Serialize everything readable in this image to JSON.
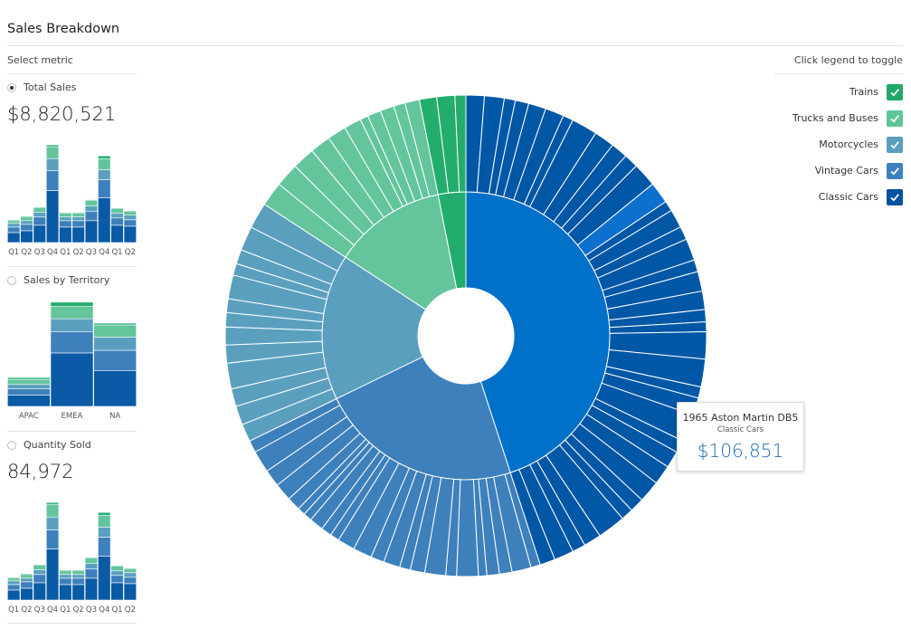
{
  "header": {
    "title": "Sales Breakdown"
  },
  "sidebar": {
    "select_label": "Select metric",
    "metrics": [
      {
        "label": "Total Sales",
        "selected": true,
        "value": "$8,820,521"
      },
      {
        "label": "Sales by Territory",
        "selected": false
      },
      {
        "label": "Quantity Sold",
        "selected": false,
        "value": "84,972"
      }
    ],
    "quarter_ticks": [
      "Q1",
      "Q2",
      "Q3",
      "Q4",
      "Q1",
      "Q2",
      "Q3",
      "Q4",
      "Q1",
      "Q2"
    ],
    "territory_ticks": [
      "APAC",
      "EMEA",
      "NA"
    ]
  },
  "legend": {
    "hint": "Click legend to toggle",
    "items": [
      {
        "label": "Trains",
        "color": "#22a86c",
        "checked": true
      },
      {
        "label": "Trucks and Buses",
        "color": "#5fc59b",
        "checked": true
      },
      {
        "label": "Motorcycles",
        "color": "#5b9fbf",
        "checked": true
      },
      {
        "label": "Vintage Cars",
        "color": "#3d80bb",
        "checked": true
      },
      {
        "label": "Classic Cars",
        "color": "#0052a1",
        "checked": true
      }
    ]
  },
  "tooltip": {
    "name": "1965 Aston Martin DB5",
    "category": "Classic Cars",
    "value": "$106,851"
  },
  "chart_data": [
    {
      "type": "sunburst",
      "categories": [
        "Classic Cars",
        "Vintage Cars",
        "Motorcycles",
        "Trucks and Buses",
        "Trains"
      ],
      "inner_shares": [
        45.0,
        22.8,
        16.4,
        12.7,
        3.1
      ],
      "outer_segment_counts": [
        38,
        24,
        13,
        11,
        3
      ],
      "highlighted": {
        "category": "Classic Cars",
        "label": "1965 Aston Martin DB5",
        "value": 106851
      }
    },
    {
      "type": "bar",
      "stacked": true,
      "categories": [
        "Q1",
        "Q2",
        "Q3",
        "Q4",
        "Q1",
        "Q2",
        "Q3",
        "Q4",
        "Q1",
        "Q2"
      ],
      "series": [
        {
          "name": "Classic Cars",
          "values": [
            11,
            13,
            19,
            57,
            17,
            17,
            24,
            49,
            19,
            18
          ]
        },
        {
          "name": "Vintage Cars",
          "values": [
            6,
            7,
            9,
            22,
            7,
            7,
            10,
            20,
            8,
            7
          ]
        },
        {
          "name": "Motorcycles",
          "values": [
            4,
            4,
            5,
            13,
            4,
            4,
            6,
            11,
            5,
            5
          ]
        },
        {
          "name": "Trucks and Buses",
          "values": [
            3,
            4,
            5,
            13,
            4,
            4,
            6,
            12,
            5,
            4
          ]
        },
        {
          "name": "Trains",
          "values": [
            1,
            1,
            1,
            2,
            1,
            1,
            1,
            3,
            1,
            1
          ]
        }
      ]
    },
    {
      "type": "bar",
      "stacked": true,
      "categories": [
        "APAC",
        "EMEA",
        "NA"
      ],
      "series": [
        {
          "name": "Classic Cars",
          "values": [
            13,
            61,
            41
          ]
        },
        {
          "name": "Vintage Cars",
          "values": [
            7,
            24,
            23
          ]
        },
        {
          "name": "Motorcycles",
          "values": [
            5,
            15,
            15
          ]
        },
        {
          "name": "Trucks and Buses",
          "values": [
            6,
            14,
            14
          ]
        },
        {
          "name": "Trains",
          "values": [
            2,
            5,
            2
          ]
        }
      ]
    },
    {
      "type": "bar",
      "stacked": true,
      "categories": [
        "Q1",
        "Q2",
        "Q3",
        "Q4",
        "Q1",
        "Q2",
        "Q3",
        "Q4",
        "Q1",
        "Q2"
      ],
      "series": [
        {
          "name": "Classic Cars",
          "values": [
            11,
            13,
            19,
            56,
            17,
            17,
            24,
            48,
            19,
            18
          ]
        },
        {
          "name": "Vintage Cars",
          "values": [
            6,
            7,
            9,
            21,
            7,
            7,
            10,
            21,
            8,
            7
          ]
        },
        {
          "name": "Motorcycles",
          "values": [
            4,
            4,
            5,
            14,
            4,
            4,
            6,
            11,
            5,
            5
          ]
        },
        {
          "name": "Trucks and Buses",
          "values": [
            3,
            4,
            5,
            14,
            4,
            4,
            6,
            13,
            5,
            4
          ]
        },
        {
          "name": "Trains",
          "values": [
            1,
            1,
            1,
            2,
            1,
            1,
            1,
            3,
            1,
            1
          ]
        }
      ]
    }
  ]
}
